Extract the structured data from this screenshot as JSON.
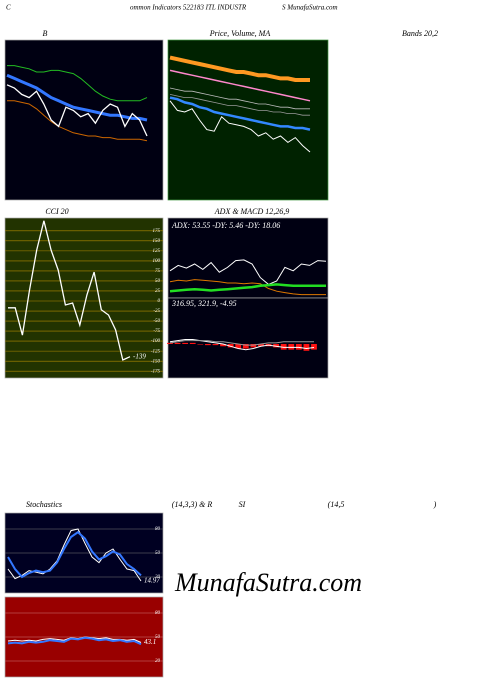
{
  "header": {
    "title_parts": [
      "C",
      "ommon  Indicators 522183 ITL  INDUSTR",
      "S MunafaSutra.com"
    ],
    "watermark": "MunafaSutra.com"
  },
  "chart_data": [
    {
      "type": "line",
      "title_parts": [
        "B",
        "Bands 20,2"
      ],
      "ylim": [
        0,
        100
      ],
      "series": [
        {
          "color": "#22bb22",
          "width": 1,
          "values": [
            84,
            84,
            83,
            82,
            80,
            80,
            81,
            81,
            80,
            79,
            76,
            72,
            68,
            65,
            63,
            62,
            62,
            62,
            62,
            64
          ]
        },
        {
          "color": "#3377ff",
          "width": 3,
          "values": [
            78,
            76,
            74,
            72,
            70,
            67,
            64,
            62,
            60,
            58,
            57,
            56,
            55,
            54,
            53,
            53,
            52,
            51,
            51,
            50
          ]
        },
        {
          "color": "#cc6600",
          "width": 1,
          "values": [
            62,
            62,
            61,
            60,
            57,
            53,
            49,
            46,
            44,
            42,
            41,
            40,
            40,
            39,
            39,
            38,
            38,
            38,
            38,
            37
          ]
        },
        {
          "color": "#ffffff",
          "width": 1.3,
          "values": [
            72,
            70,
            66,
            64,
            68,
            60,
            50,
            46,
            58,
            56,
            52,
            54,
            48,
            56,
            60,
            58,
            46,
            54,
            50,
            40
          ]
        }
      ]
    },
    {
      "type": "line",
      "title_parts": [
        "Price,  Volume,  MA"
      ],
      "ylim": [
        0,
        100
      ],
      "series": [
        {
          "color": "#ff9922",
          "width": 4,
          "values": [
            89,
            88,
            87,
            86,
            85,
            84,
            83,
            82,
            81,
            80,
            80,
            79,
            78,
            78,
            77,
            76,
            76,
            75,
            75,
            75
          ]
        },
        {
          "color": "#ff88cc",
          "width": 1.5,
          "values": [
            81,
            80,
            79,
            78,
            77,
            76,
            75,
            74,
            73,
            72,
            71,
            70,
            69,
            68,
            67,
            66,
            65,
            64,
            63,
            62
          ]
        },
        {
          "color": "#bbbbbb",
          "width": 0.8,
          "values": [
            70,
            69,
            68,
            68,
            67,
            66,
            65,
            64,
            63,
            63,
            62,
            61,
            60,
            60,
            59,
            58,
            58,
            57,
            57,
            57
          ]
        },
        {
          "color": "#999999",
          "width": 0.8,
          "values": [
            66,
            65,
            64,
            64,
            63,
            62,
            61,
            60,
            59,
            59,
            58,
            57,
            56,
            56,
            55,
            55,
            54,
            54,
            53,
            53
          ]
        },
        {
          "color": "#3388ff",
          "width": 2.5,
          "values": [
            64,
            63,
            61,
            60,
            58,
            57,
            55,
            54,
            53,
            52,
            51,
            50,
            49,
            48,
            47,
            46,
            46,
            45,
            45,
            44
          ]
        },
        {
          "color": "#ffffff",
          "width": 1,
          "values": [
            62,
            56,
            55,
            57,
            50,
            44,
            43,
            52,
            48,
            47,
            46,
            44,
            40,
            42,
            38,
            40,
            36,
            39,
            34,
            30
          ]
        }
      ]
    },
    {
      "type": "line",
      "title_parts": [
        "CCI 20"
      ],
      "ylim": [
        -192,
        207
      ],
      "grid": true,
      "grid_color": "#b08a00",
      "yticks": [
        175,
        150,
        125,
        100,
        75,
        50,
        25,
        0,
        -25,
        -50,
        -75,
        -100,
        -125,
        -150,
        -175
      ],
      "series": [
        {
          "color": "#ffffff",
          "width": 1.3,
          "label_last": true,
          "values": [
            -17,
            -17,
            -85,
            27,
            127,
            200,
            127,
            77,
            -10,
            -5,
            -60,
            15,
            72,
            -22,
            -35,
            -72,
            -147,
            -139
          ]
        }
      ]
    },
    {
      "type": "line",
      "title_parts": [
        "ADX  & MACD 12,26,9"
      ],
      "info": "ADX: 53.55  -DY: 5.46  -DY: 18.06",
      "ylim": [
        0,
        100
      ],
      "series": [
        {
          "color": "#ffffff",
          "width": 1,
          "values": [
            40,
            48,
            44,
            50,
            42,
            52,
            38,
            45,
            55,
            56,
            50,
            30,
            20,
            25,
            45,
            40,
            50,
            48,
            55,
            54
          ]
        },
        {
          "color": "#dd7700",
          "width": 1,
          "values": [
            24,
            26,
            25,
            27,
            26,
            25,
            24,
            22,
            22,
            21,
            22,
            21,
            14,
            10,
            8,
            6,
            5,
            5,
            5,
            5
          ]
        },
        {
          "color": "#22dd22",
          "width": 2.5,
          "values": [
            10,
            11,
            12,
            13,
            12,
            11,
            12,
            13,
            14,
            15,
            16,
            18,
            19,
            20,
            19,
            18,
            18,
            18,
            18,
            18
          ]
        }
      ]
    },
    {
      "type": "line",
      "info": "316.95,  321.9,  -4.95",
      "ylim": [
        290,
        350
      ],
      "y2lim": [
        -30,
        30
      ],
      "series": [
        {
          "color": "#ff1111",
          "axis": "y2",
          "kind": "bar",
          "values": [
            1,
            1,
            1,
            1,
            0,
            -1,
            -1,
            -2,
            -3,
            -4,
            -4,
            -3,
            -2,
            -2,
            -3,
            -5,
            -5,
            -5,
            -6,
            -4.95
          ]
        },
        {
          "color": "#ffffff",
          "width": 1,
          "values": [
            322,
            323,
            324,
            324,
            323,
            322,
            321,
            320,
            318,
            316,
            315,
            316,
            318,
            319,
            318,
            317,
            317,
            317,
            316,
            316.95
          ]
        },
        {
          "color": "#999999",
          "width": 1,
          "values": [
            321,
            322,
            323,
            323,
            323,
            323,
            322,
            322,
            321,
            320,
            319,
            319,
            320,
            321,
            321,
            322,
            322,
            322,
            322,
            321.9
          ]
        }
      ]
    },
    {
      "type": "line",
      "title_parts": [
        "Stochastics",
        "(14,3,3) & R",
        "SI",
        "(14,5",
        ")"
      ],
      "ylim": [
        0,
        100
      ],
      "yticks": [
        80,
        50,
        20
      ],
      "grid": true,
      "grid_color": "#777777",
      "series": [
        {
          "color": "#ffffff",
          "width": 1,
          "label_last": true,
          "values": [
            30,
            18,
            22,
            28,
            26,
            24,
            30,
            40,
            60,
            78,
            80,
            62,
            45,
            38,
            50,
            55,
            42,
            30,
            28,
            14.97
          ]
        },
        {
          "color": "#3377ff",
          "width": 2,
          "values": [
            45,
            30,
            20,
            25,
            28,
            26,
            28,
            38,
            55,
            70,
            76,
            68,
            52,
            42,
            46,
            52,
            48,
            36,
            30,
            22
          ]
        }
      ]
    },
    {
      "type": "line",
      "ylim": [
        0,
        100
      ],
      "yticks": [
        80,
        50,
        20
      ],
      "grid": true,
      "grid_color": "#cc7777",
      "series": [
        {
          "color": "#ffffff",
          "width": 1,
          "label_last": true,
          "values": [
            45,
            46,
            45,
            46,
            45,
            47,
            48,
            47,
            46,
            49,
            48,
            50,
            49,
            48,
            49,
            47,
            47,
            46,
            47,
            43.1
          ]
        },
        {
          "color": "#3377ff",
          "width": 2,
          "values": [
            42,
            43,
            42,
            44,
            43,
            44,
            46,
            45,
            44,
            48,
            47,
            49,
            48,
            46,
            47,
            45,
            46,
            44,
            45,
            41
          ]
        }
      ]
    }
  ]
}
